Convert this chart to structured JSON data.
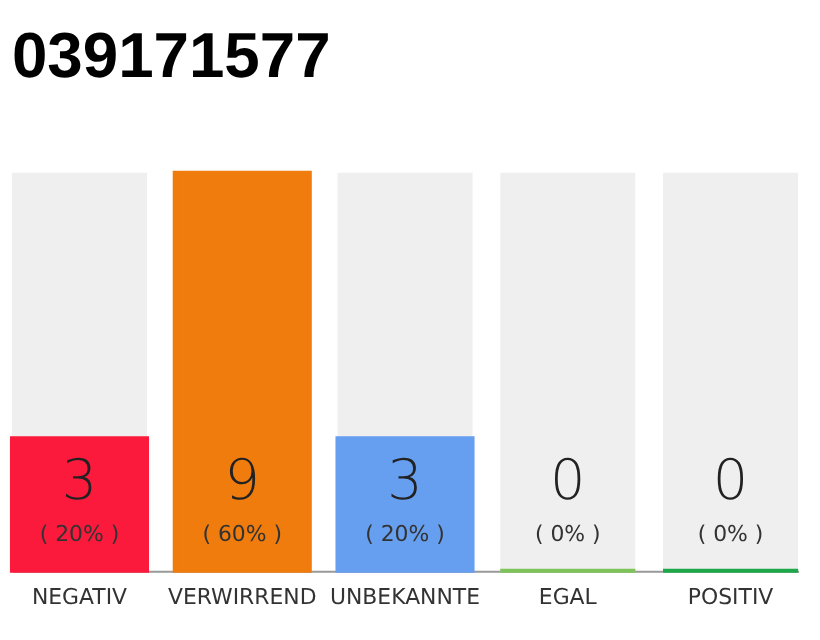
{
  "chart_data": {
    "type": "bar",
    "title": "039171577",
    "categories": [
      "NEGATIV",
      "VERWIRREND",
      "UNBEKANNTE",
      "EGAL",
      "POSITIV"
    ],
    "values": [
      3,
      9,
      3,
      0,
      0
    ],
    "colors": [
      "#fc1a3c",
      "#f07c0d",
      "#679ff0",
      "#7dc35a",
      "#1fa84a"
    ],
    "ylim": [
      0,
      9
    ],
    "tick_labels": "x",
    "grid": false,
    "data_labels": true,
    "annotations": [
      "( 20% )",
      "( 60% )",
      "( 20% )",
      "( 0% )",
      "( 0% )"
    ]
  }
}
